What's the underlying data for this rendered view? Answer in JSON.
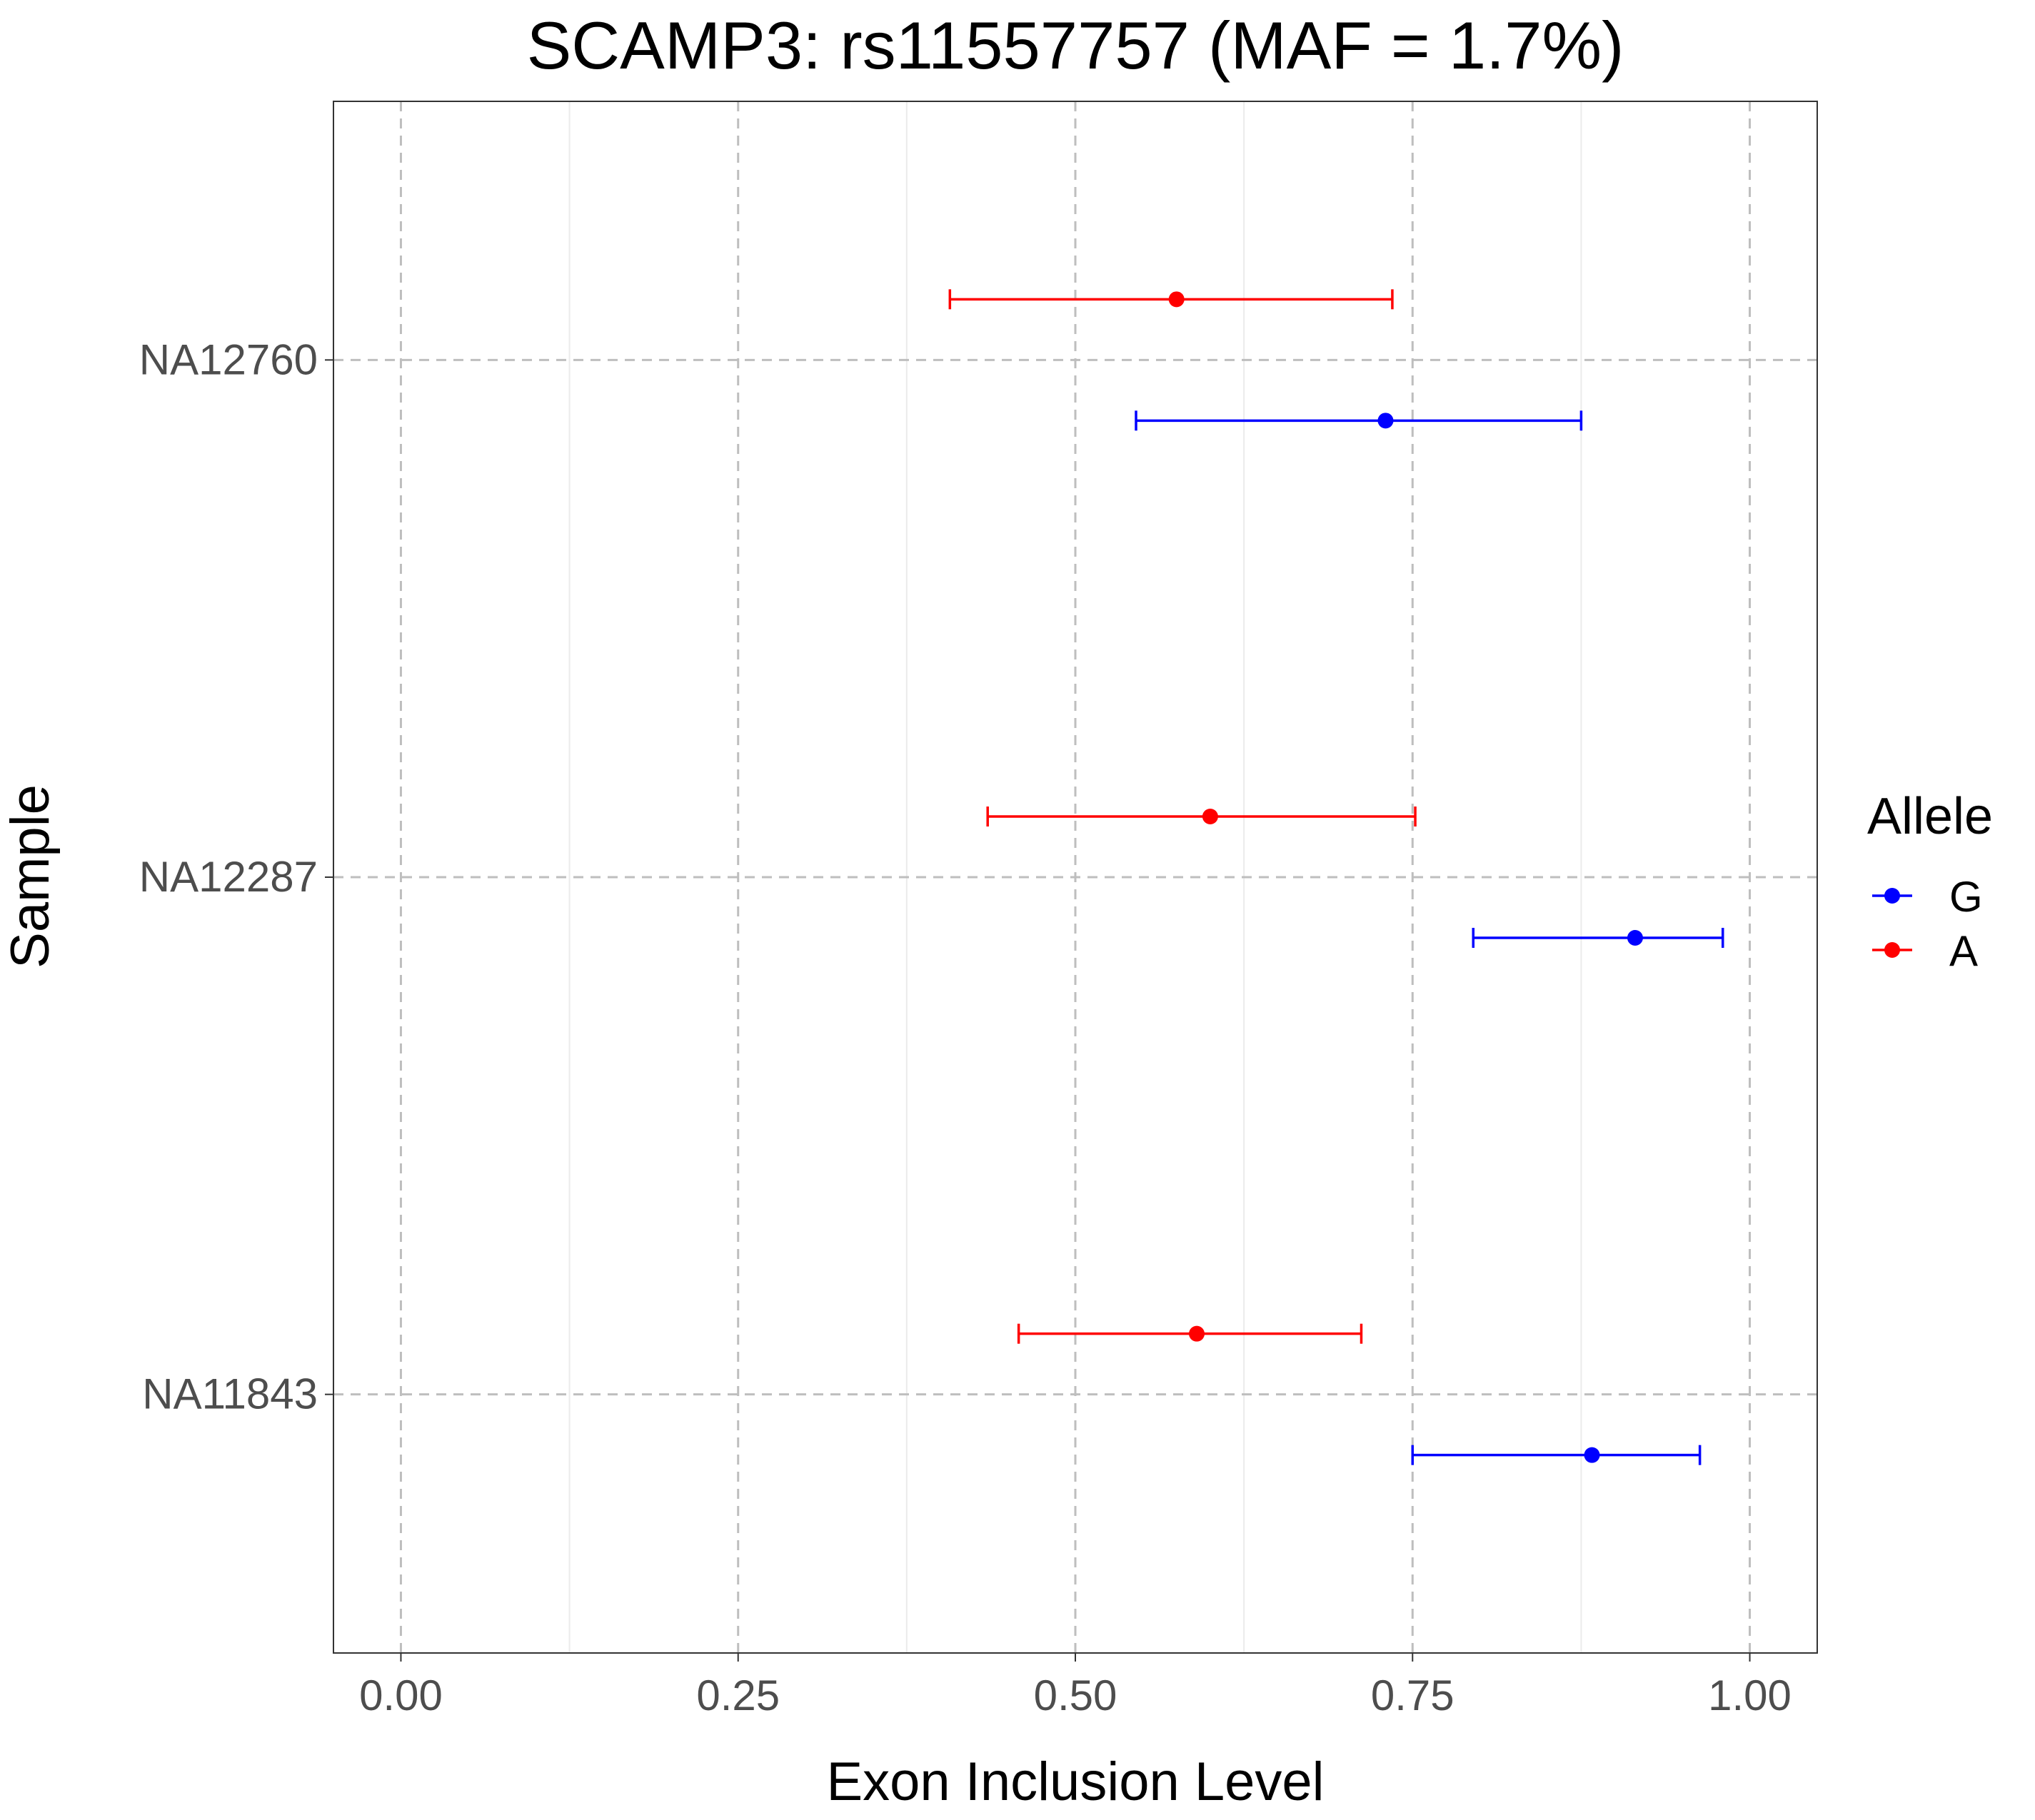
{
  "chart_data": {
    "type": "scatter",
    "title": "SCAMP3: rs11557757 (MAF = 1.7%)",
    "xlabel": "Exon Inclusion Level",
    "ylabel": "Sample",
    "xlim": [
      -0.05,
      1.05
    ],
    "x_ticks": [
      "0.00",
      "0.25",
      "0.50",
      "0.75",
      "1.00"
    ],
    "x_tick_values": [
      0,
      0.25,
      0.5,
      0.75,
      1.0
    ],
    "categories": [
      "NA12760",
      "NA12287",
      "NA11843"
    ],
    "grid": true,
    "legend": {
      "title": "Allele",
      "position": "right",
      "entries": [
        {
          "name": "G",
          "color": "#0000ff"
        },
        {
          "name": "A",
          "color": "#ff0000"
        }
      ]
    },
    "series": [
      {
        "name": "G",
        "color": "#0000ff",
        "points": [
          {
            "sample": "NA12760",
            "value": 0.73,
            "lower": 0.545,
            "upper": 0.875
          },
          {
            "sample": "NA12287",
            "value": 0.915,
            "lower": 0.795,
            "upper": 0.98
          },
          {
            "sample": "NA11843",
            "value": 0.883,
            "lower": 0.75,
            "upper": 0.963
          }
        ]
      },
      {
        "name": "A",
        "color": "#ff0000",
        "points": [
          {
            "sample": "NA12760",
            "value": 0.575,
            "lower": 0.407,
            "upper": 0.735
          },
          {
            "sample": "NA12287",
            "value": 0.6,
            "lower": 0.435,
            "upper": 0.752
          },
          {
            "sample": "NA11843",
            "value": 0.59,
            "lower": 0.458,
            "upper": 0.712
          }
        ]
      }
    ]
  }
}
